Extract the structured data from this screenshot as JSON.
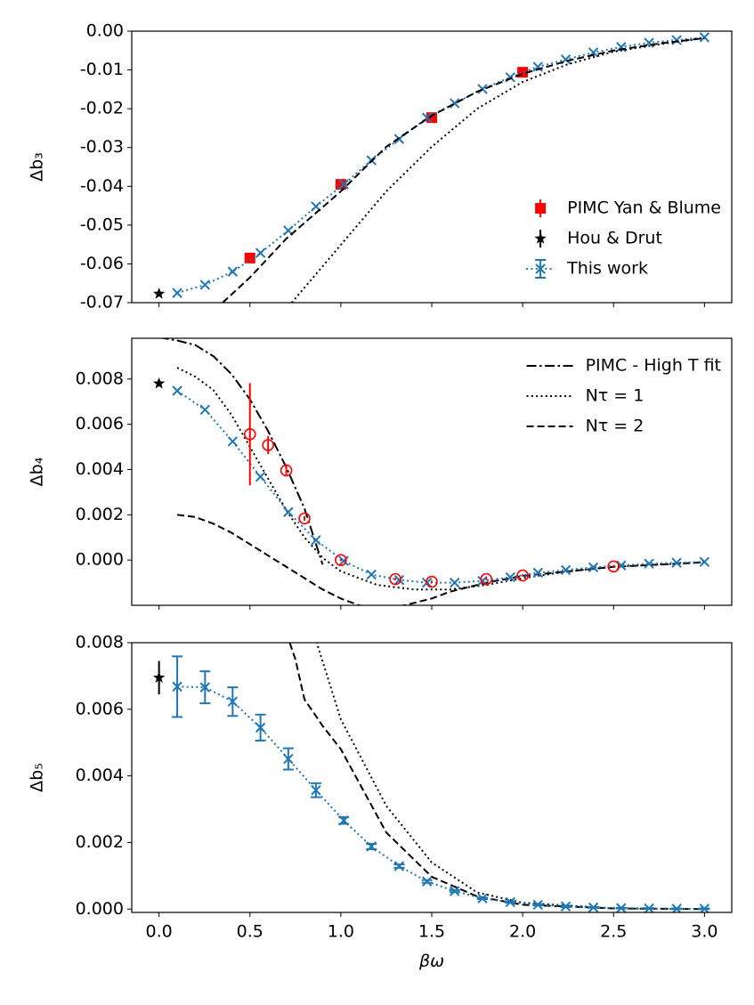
{
  "chart_data": [
    {
      "type": "line",
      "ylabel": "Δb₃",
      "legend": "lower right",
      "xlim": [
        -0.15,
        3.15
      ],
      "xticks": [
        0,
        0.5,
        1,
        1.5,
        2,
        2.5,
        3
      ],
      "ylim": [
        -0.07,
        0.0
      ],
      "yticks": [
        {
          "value": -0.07,
          "label": "-0.07"
        },
        {
          "value": -0.06,
          "label": "-0.06"
        },
        {
          "value": -0.05,
          "label": "-0.05"
        },
        {
          "value": -0.04,
          "label": "-0.04"
        },
        {
          "value": -0.03,
          "label": "-0.03"
        },
        {
          "value": -0.02,
          "label": "-0.02"
        },
        {
          "value": -0.01,
          "label": "-0.01"
        },
        {
          "value": 0.0,
          "label": "0.00"
        }
      ],
      "series": [
        {
          "name": "PIMC Yan & Blume",
          "color": "#ff0000",
          "marker": "square",
          "x": [
            0.5,
            1.0,
            1.5,
            2.0
          ],
          "values": [
            -0.0585,
            -0.0395,
            -0.0223,
            -0.0106
          ]
        },
        {
          "name": "Hou & Drut",
          "color": "#000000",
          "marker": "star",
          "x": [
            0.0
          ],
          "values": [
            -0.0677
          ]
        },
        {
          "name": "This work",
          "color": "#1f77b4",
          "marker": "x",
          "line": "dotted",
          "x": [
            0.1,
            0.253,
            0.405,
            0.558,
            0.711,
            0.863,
            1.016,
            1.168,
            1.321,
            1.474,
            1.626,
            1.779,
            1.932,
            2.084,
            2.237,
            2.389,
            2.542,
            2.695,
            2.847,
            3.0
          ],
          "values": [
            -0.0675,
            -0.0654,
            -0.062,
            -0.0572,
            -0.0514,
            -0.0452,
            -0.0395,
            -0.0333,
            -0.0278,
            -0.0223,
            -0.0186,
            -0.0149,
            -0.0119,
            -0.0092,
            -0.0073,
            -0.0055,
            -0.0041,
            -0.003,
            -0.0023,
            -0.0016
          ]
        },
        {
          "color": "#000000",
          "line": "dashed",
          "x": [
            0.35,
            0.5,
            0.7,
            1.0,
            1.25,
            1.5,
            1.75,
            2.0,
            2.25,
            2.5,
            2.75,
            3.0
          ],
          "values": [
            -0.07,
            -0.0635,
            -0.0535,
            -0.0413,
            -0.0298,
            -0.0218,
            -0.0156,
            -0.011,
            -0.0076,
            -0.005,
            -0.0032,
            -0.0018
          ]
        },
        {
          "color": "#000000",
          "line": "dotted",
          "x": [
            0.73,
            1.0,
            1.25,
            1.5,
            1.75,
            2.0,
            2.25,
            2.5,
            2.75,
            3.0
          ],
          "values": [
            -0.07,
            -0.0551,
            -0.0413,
            -0.0298,
            -0.02,
            -0.0131,
            -0.0085,
            -0.0053,
            -0.0034,
            -0.0018
          ]
        }
      ]
    },
    {
      "type": "line",
      "ylabel": "Δb₄",
      "legend": "upper right",
      "xlim": [
        -0.15,
        3.15
      ],
      "xticks": [
        0,
        0.5,
        1,
        1.5,
        2,
        2.5,
        3
      ],
      "ylim": [
        -0.002,
        0.0098
      ],
      "yticks": [
        {
          "value": 0.0,
          "label": "0.000"
        },
        {
          "value": 0.002,
          "label": "0.002"
        },
        {
          "value": 0.004,
          "label": "0.004"
        },
        {
          "value": 0.006,
          "label": "0.006"
        },
        {
          "value": 0.008,
          "label": "0.008"
        }
      ],
      "series": [
        {
          "name": "PIMC - High T fit",
          "color": "#000000",
          "line": "dashdot",
          "x": [
            0.0,
            0.1,
            0.2,
            0.3,
            0.4,
            0.5,
            0.6,
            0.7,
            0.8,
            0.9
          ],
          "values": [
            0.00984,
            0.0097,
            0.0095,
            0.009,
            0.0082,
            0.0071,
            0.0057,
            0.0041,
            0.00228,
            -0.0002
          ]
        },
        {
          "name": "Nτ = 1",
          "color": "#000000",
          "line": "dotted",
          "x": [
            0.1,
            0.2,
            0.3,
            0.4,
            0.5,
            0.6,
            0.7,
            0.8,
            0.9,
            1.0,
            1.2,
            1.4,
            1.6,
            1.8,
            2.0,
            2.25,
            2.5,
            2.75,
            3.0
          ],
          "values": [
            0.0085,
            0.0081,
            0.0075,
            0.0064,
            0.005,
            0.0036,
            0.0022,
            0.001,
            0.0001,
            -0.0005,
            -0.0011,
            -0.0013,
            -0.0013,
            -0.0011,
            -0.0008,
            -0.0005,
            -0.0003,
            -0.0002,
            -0.0001
          ]
        },
        {
          "name": "Nτ = 2",
          "color": "#000000",
          "line": "dashed",
          "x": [
            0.1,
            0.2,
            0.3,
            0.4,
            0.5,
            0.6,
            0.7,
            0.8,
            0.9,
            1.0,
            1.1,
            1.2,
            1.35,
            1.5,
            1.6,
            1.8,
            2.0,
            2.25,
            2.5,
            2.75,
            3.0
          ],
          "values": [
            0.002,
            0.0019,
            0.0016,
            0.0012,
            0.0007,
            0.0002,
            -0.0003,
            -0.0008,
            -0.0013,
            -0.0017,
            -0.002,
            -0.0022,
            -0.002,
            -0.0017,
            -0.0014,
            -0.001,
            -0.0007,
            -0.0005,
            -0.0003,
            -0.0002,
            -0.0001
          ]
        },
        {
          "color": "#000000",
          "marker": "star",
          "x": [
            0.0
          ],
          "values": [
            0.0078
          ]
        },
        {
          "color": "#1f77b4",
          "marker": "x",
          "line": "dotted",
          "x": [
            0.1,
            0.253,
            0.405,
            0.558,
            0.711,
            0.863,
            1.016,
            1.168,
            1.321,
            1.474,
            1.626,
            1.779,
            1.932,
            2.084,
            2.237,
            2.389,
            2.542,
            2.695,
            2.847,
            3.0
          ],
          "values": [
            0.00748,
            0.00664,
            0.00524,
            0.00368,
            0.00212,
            0.00088,
            -4e-05,
            -0.00064,
            -0.00088,
            -0.001,
            -0.001,
            -0.00092,
            -0.00076,
            -0.00056,
            -0.00044,
            -0.00032,
            -0.00024,
            -0.00016,
            -0.00012,
            -8e-05
          ]
        },
        {
          "color": "#ff0000",
          "marker": "circle",
          "x": [
            0.5,
            0.6,
            0.7,
            0.8,
            1.0,
            1.3,
            1.5,
            1.8,
            2.0,
            2.5
          ],
          "values": [
            0.00556,
            0.00508,
            0.00396,
            0.00184,
            0.0,
            -0.00084,
            -0.00096,
            -0.00084,
            -0.00068,
            -0.00028
          ],
          "errors": [
            0.00226,
            0.0004,
            0.0002,
            0.0001,
            5e-05,
            5e-05,
            5e-05,
            5e-05,
            5e-05,
            5e-05
          ]
        }
      ]
    },
    {
      "type": "line",
      "ylabel": "Δb₅",
      "xlabel": "βω",
      "xlim": [
        -0.15,
        3.15
      ],
      "xticks": [
        {
          "value": 0,
          "label": "0.0"
        },
        {
          "value": 0.5,
          "label": "0.5"
        },
        {
          "value": 1,
          "label": "1.0"
        },
        {
          "value": 1.5,
          "label": "1.5"
        },
        {
          "value": 2,
          "label": "2.0"
        },
        {
          "value": 2.5,
          "label": "2.5"
        },
        {
          "value": 3,
          "label": "3.0"
        }
      ],
      "ylim": [
        -0.0001,
        0.008
      ],
      "yticks": [
        {
          "value": 0.0,
          "label": "0.000"
        },
        {
          "value": 0.002,
          "label": "0.002"
        },
        {
          "value": 0.004,
          "label": "0.004"
        },
        {
          "value": 0.006,
          "label": "0.006"
        },
        {
          "value": 0.008,
          "label": "0.008"
        }
      ],
      "series": [
        {
          "color": "#000000",
          "line": "dashed",
          "x": [
            0.7,
            0.75,
            0.8,
            0.9,
            1.0,
            1.25,
            1.5,
            1.75,
            2.0,
            2.5,
            3.0
          ],
          "values": [
            0.0083,
            0.0075,
            0.0063,
            0.0055,
            0.0048,
            0.0023,
            0.00097,
            0.00038,
            0.00013,
            2e-05,
            0.0
          ]
        },
        {
          "color": "#000000",
          "line": "dotted",
          "x": [
            0.85,
            1.0,
            1.25,
            1.5,
            1.75,
            2.0,
            2.5,
            3.0
          ],
          "values": [
            0.0083,
            0.0057,
            0.0031,
            0.0014,
            0.0005,
            0.00019,
            2e-05,
            0.0
          ]
        },
        {
          "color": "#000000",
          "marker": "star",
          "x": [
            0.0
          ],
          "values": [
            0.00695
          ],
          "errors": [
            0.0005
          ]
        },
        {
          "color": "#1f77b4",
          "marker": "x",
          "line": "dotted",
          "capsize": true,
          "x": [
            0.1,
            0.253,
            0.405,
            0.558,
            0.711,
            0.863,
            1.016,
            1.168,
            1.321,
            1.474,
            1.626,
            1.779,
            1.932,
            2.084,
            2.237,
            2.389,
            2.542,
            2.695,
            2.847,
            3.0
          ],
          "values": [
            0.00668,
            0.00666,
            0.00623,
            0.00545,
            0.00451,
            0.00357,
            0.00266,
            0.00188,
            0.00129,
            0.00083,
            0.00054,
            0.00032,
            0.00021,
            0.00013,
            8e-05,
            5e-05,
            3e-05,
            2e-05,
            1e-05,
            1e-05
          ],
          "errors": [
            0.00091,
            0.00048,
            0.00043,
            0.00039,
            0.00032,
            0.00021,
            0.0001,
            8e-05,
            5e-05,
            4e-05,
            3e-05,
            2e-05,
            2e-05,
            2e-05,
            2e-05,
            1e-05,
            1e-05,
            1e-05,
            1e-05,
            1e-05
          ]
        }
      ]
    }
  ]
}
